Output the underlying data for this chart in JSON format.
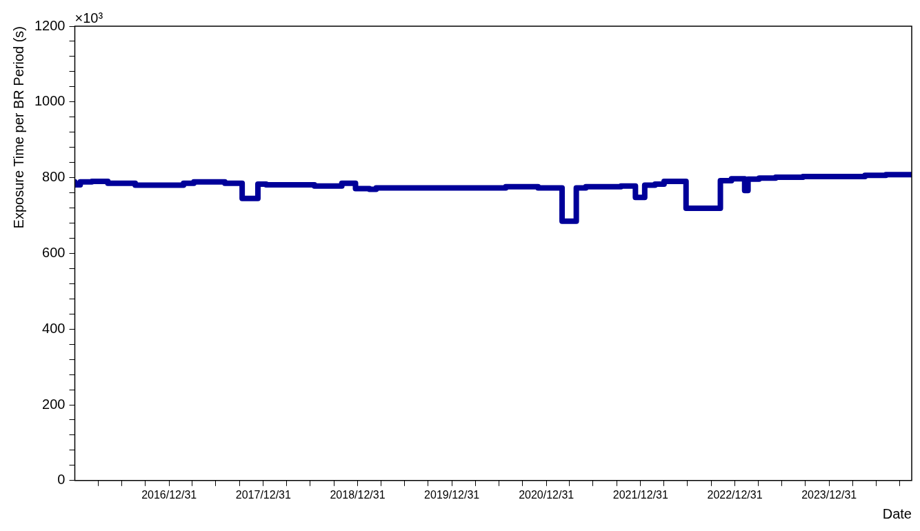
{
  "chart_data": {
    "type": "step",
    "xlabel": "Date",
    "ylabel": "Exposure Time per BR Period (s)",
    "annotations": [
      "×10³"
    ],
    "x": [
      "2016-01-01",
      "2016-01-22",
      "2016-03-07",
      "2016-05-08",
      "2016-08-22",
      "2017-02-25",
      "2017-04-06",
      "2017-08-04",
      "2017-10-10",
      "2017-12-10",
      "2018-01-11",
      "2018-07-17",
      "2018-10-31",
      "2018-12-23",
      "2019-02-15",
      "2019-03-13",
      "2020-07-27",
      "2020-11-29",
      "2021-03-02",
      "2021-04-26",
      "2021-06-02",
      "2021-10-16",
      "2021-12-11",
      "2022-01-16",
      "2022-02-25",
      "2022-04-01",
      "2022-06-25",
      "2022-11-05",
      "2022-12-18",
      "2023-02-07",
      "2023-02-20",
      "2023-04-04",
      "2023-06-07",
      "2023-09-21",
      "2024-05-18",
      "2024-08-07",
      "2024-09-30",
      "2024-11-15"
    ],
    "series": [
      {
        "color": "#000099",
        "values": [
          789,
          781,
          789,
          790,
          785,
          780,
          785,
          789,
          785,
          745,
          783,
          781,
          778,
          785,
          771,
          769,
          773,
          776,
          773,
          685,
          773,
          776,
          778,
          748,
          780,
          783,
          790,
          719,
          792,
          797,
          766,
          796,
          799,
          801,
          803,
          806,
          808,
          808
        ]
      }
    ],
    "xlim": [
      "2016-01-01",
      "2024-11-15"
    ],
    "xticks": [
      {
        "value": "2016-03-31",
        "label": null
      },
      {
        "value": "2016-06-30",
        "label": null
      },
      {
        "value": "2016-09-30",
        "label": null
      },
      {
        "value": "2016-12-31",
        "label": "2016/12/31"
      },
      {
        "value": "2017-03-31",
        "label": null
      },
      {
        "value": "2017-06-30",
        "label": null
      },
      {
        "value": "2017-09-30",
        "label": null
      },
      {
        "value": "2017-12-31",
        "label": "2017/12/31"
      },
      {
        "value": "2018-03-31",
        "label": null
      },
      {
        "value": "2018-06-30",
        "label": null
      },
      {
        "value": "2018-09-30",
        "label": null
      },
      {
        "value": "2018-12-31",
        "label": "2018/12/31"
      },
      {
        "value": "2019-03-31",
        "label": null
      },
      {
        "value": "2019-06-30",
        "label": null
      },
      {
        "value": "2019-09-30",
        "label": null
      },
      {
        "value": "2019-12-31",
        "label": "2019/12/31"
      },
      {
        "value": "2020-03-31",
        "label": null
      },
      {
        "value": "2020-06-30",
        "label": null
      },
      {
        "value": "2020-09-30",
        "label": null
      },
      {
        "value": "2020-12-31",
        "label": "2020/12/31"
      },
      {
        "value": "2021-03-31",
        "label": null
      },
      {
        "value": "2021-06-30",
        "label": null
      },
      {
        "value": "2021-09-30",
        "label": null
      },
      {
        "value": "2021-12-31",
        "label": "2021/12/31"
      },
      {
        "value": "2022-03-31",
        "label": null
      },
      {
        "value": "2022-06-30",
        "label": null
      },
      {
        "value": "2022-09-30",
        "label": null
      },
      {
        "value": "2022-12-31",
        "label": "2022/12/31"
      },
      {
        "value": "2023-03-31",
        "label": null
      },
      {
        "value": "2023-06-30",
        "label": null
      },
      {
        "value": "2023-09-30",
        "label": null
      },
      {
        "value": "2023-12-31",
        "label": "2023/12/31"
      },
      {
        "value": "2024-03-31",
        "label": null
      },
      {
        "value": "2024-06-30",
        "label": null
      },
      {
        "value": "2024-09-30",
        "label": null
      }
    ],
    "ylim": [
      0,
      1200
    ],
    "yticks": [
      0,
      {
        "value": 40,
        "label": null
      },
      {
        "value": 80,
        "label": null
      },
      {
        "value": 120,
        "label": null
      },
      {
        "value": 160,
        "label": null
      },
      200,
      {
        "value": 240,
        "label": null
      },
      {
        "value": 280,
        "label": null
      },
      {
        "value": 320,
        "label": null
      },
      {
        "value": 360,
        "label": null
      },
      400,
      {
        "value": 440,
        "label": null
      },
      {
        "value": 480,
        "label": null
      },
      {
        "value": 520,
        "label": null
      },
      {
        "value": 560,
        "label": null
      },
      600,
      {
        "value": 640,
        "label": null
      },
      {
        "value": 680,
        "label": null
      },
      {
        "value": 720,
        "label": null
      },
      {
        "value": 760,
        "label": null
      },
      800,
      {
        "value": 840,
        "label": null
      },
      {
        "value": 880,
        "label": null
      },
      {
        "value": 920,
        "label": null
      },
      {
        "value": 960,
        "label": null
      },
      1000,
      {
        "value": 1040,
        "label": null
      },
      {
        "value": 1080,
        "label": null
      },
      {
        "value": 1120,
        "label": null
      },
      {
        "value": 1160,
        "label": null
      },
      1200
    ],
    "grid": false,
    "legend": false
  }
}
